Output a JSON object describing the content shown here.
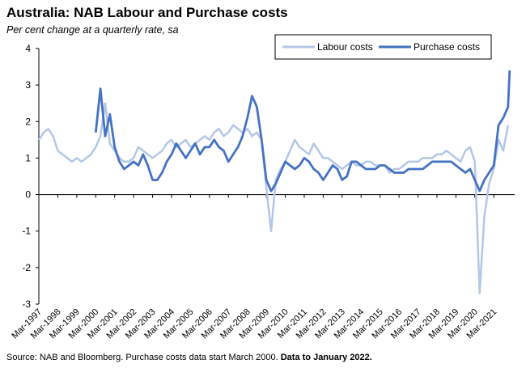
{
  "title": "Australia: NAB Labour and Purchase costs",
  "subtitle": "Per cent change at a quarterly rate, sa",
  "source_prefix": "Source: NAB and Bloomberg.  Purchase costs data start March 2000.  ",
  "source_bold": "Data to January 2022.",
  "colors": {
    "labour": "#b4c7e7",
    "purchase": "#4472c4",
    "axis": "#000000"
  },
  "chart_data": {
    "type": "line",
    "title": "Australia: NAB Labour and Purchase costs",
    "subtitle": "Per cent change at a quarterly rate, sa",
    "xlabel": "",
    "ylabel": "",
    "ylim": [
      -3,
      4
    ],
    "yticks": [
      "4",
      "3",
      "2",
      "1",
      "0",
      "-1",
      "-2",
      "-3"
    ],
    "xticks": [
      "Mar-1997",
      "Mar-1998",
      "Mar-1999",
      "Mar-2000",
      "Mar-2001",
      "Mar-2002",
      "Mar-2003",
      "Mar-2004",
      "Mar-2005",
      "Mar-2006",
      "Mar-2007",
      "Mar-2008",
      "Mar-2009",
      "Mar-2010",
      "Mar-2011",
      "Mar-2012",
      "Mar-2013",
      "Mar-2014",
      "Mar-2015",
      "Mar-2016",
      "Mar-2017",
      "Mar-2018",
      "Mar-2019",
      "Mar-2020",
      "Mar-2021"
    ],
    "legend_position": "top-right",
    "grid": false,
    "series": [
      {
        "name": "Labour costs",
        "x": [
          "1997-03",
          "1997-06",
          "1997-09",
          "1997-12",
          "1998-03",
          "1998-06",
          "1998-09",
          "1998-12",
          "1999-03",
          "1999-06",
          "1999-09",
          "1999-12",
          "2000-03",
          "2000-06",
          "2000-09",
          "2000-12",
          "2001-03",
          "2001-06",
          "2001-09",
          "2001-12",
          "2002-03",
          "2002-06",
          "2002-09",
          "2002-12",
          "2003-03",
          "2003-06",
          "2003-09",
          "2003-12",
          "2004-03",
          "2004-06",
          "2004-09",
          "2004-12",
          "2005-03",
          "2005-06",
          "2005-09",
          "2005-12",
          "2006-03",
          "2006-06",
          "2006-09",
          "2006-12",
          "2007-03",
          "2007-06",
          "2007-09",
          "2007-12",
          "2008-03",
          "2008-06",
          "2008-09",
          "2008-12",
          "2009-03",
          "2009-06",
          "2009-09",
          "2009-12",
          "2010-03",
          "2010-06",
          "2010-09",
          "2010-12",
          "2011-03",
          "2011-06",
          "2011-09",
          "2011-12",
          "2012-03",
          "2012-06",
          "2012-09",
          "2012-12",
          "2013-03",
          "2013-06",
          "2013-09",
          "2013-12",
          "2014-03",
          "2014-06",
          "2014-09",
          "2014-12",
          "2015-03",
          "2015-06",
          "2015-09",
          "2015-12",
          "2016-03",
          "2016-06",
          "2016-09",
          "2016-12",
          "2017-03",
          "2017-06",
          "2017-09",
          "2017-12",
          "2018-03",
          "2018-06",
          "2018-09",
          "2018-12",
          "2019-03",
          "2019-06",
          "2019-09",
          "2019-12",
          "2020-03",
          "2020-06",
          "2020-09",
          "2020-12",
          "2021-03",
          "2021-06",
          "2021-09",
          "2021-12"
        ],
        "values": [
          1.5,
          1.7,
          1.8,
          1.6,
          1.2,
          1.1,
          1.0,
          0.9,
          1.0,
          0.9,
          1.0,
          1.1,
          1.3,
          1.6,
          2.5,
          1.4,
          1.2,
          1.0,
          0.9,
          0.9,
          1.0,
          1.3,
          1.2,
          1.1,
          1.0,
          1.1,
          1.2,
          1.4,
          1.5,
          1.3,
          1.4,
          1.5,
          1.3,
          1.4,
          1.5,
          1.6,
          1.5,
          1.7,
          1.8,
          1.6,
          1.7,
          1.9,
          1.8,
          1.7,
          1.8,
          1.6,
          1.7,
          1.5,
          0.2,
          -1.0,
          0.4,
          0.7,
          0.9,
          1.2,
          1.5,
          1.3,
          1.2,
          1.1,
          1.4,
          1.2,
          1.0,
          1.0,
          0.9,
          0.8,
          0.7,
          0.8,
          0.9,
          0.8,
          0.8,
          0.9,
          0.9,
          0.8,
          0.8,
          0.8,
          0.6,
          0.7,
          0.7,
          0.8,
          0.9,
          0.9,
          0.9,
          1.0,
          1.0,
          1.0,
          1.1,
          1.1,
          1.2,
          1.1,
          1.0,
          0.9,
          1.2,
          1.3,
          0.9,
          -2.7,
          -0.6,
          0.3,
          0.7,
          1.5,
          1.2,
          1.9
        ]
      },
      {
        "name": "Purchase costs",
        "x": [
          "2000-03",
          "2000-06",
          "2000-09",
          "2000-12",
          "2001-03",
          "2001-06",
          "2001-09",
          "2001-12",
          "2002-03",
          "2002-06",
          "2002-09",
          "2002-12",
          "2003-03",
          "2003-06",
          "2003-09",
          "2003-12",
          "2004-03",
          "2004-06",
          "2004-09",
          "2004-12",
          "2005-03",
          "2005-06",
          "2005-09",
          "2005-12",
          "2006-03",
          "2006-06",
          "2006-09",
          "2006-12",
          "2007-03",
          "2007-06",
          "2007-09",
          "2007-12",
          "2008-03",
          "2008-06",
          "2008-09",
          "2008-12",
          "2009-03",
          "2009-06",
          "2009-09",
          "2009-12",
          "2010-03",
          "2010-06",
          "2010-09",
          "2010-12",
          "2011-03",
          "2011-06",
          "2011-09",
          "2011-12",
          "2012-03",
          "2012-06",
          "2012-09",
          "2012-12",
          "2013-03",
          "2013-06",
          "2013-09",
          "2013-12",
          "2014-03",
          "2014-06",
          "2014-09",
          "2014-12",
          "2015-03",
          "2015-06",
          "2015-09",
          "2015-12",
          "2016-03",
          "2016-06",
          "2016-09",
          "2016-12",
          "2017-03",
          "2017-06",
          "2017-09",
          "2017-12",
          "2018-03",
          "2018-06",
          "2018-09",
          "2018-12",
          "2019-03",
          "2019-06",
          "2019-09",
          "2019-12",
          "2020-03",
          "2020-06",
          "2020-09",
          "2020-12",
          "2021-03",
          "2021-06",
          "2021-09",
          "2021-12",
          "2022-01"
        ],
        "values": [
          1.7,
          2.9,
          1.6,
          2.2,
          1.3,
          0.9,
          0.7,
          0.8,
          0.9,
          0.8,
          1.1,
          0.8,
          0.4,
          0.4,
          0.6,
          0.9,
          1.1,
          1.4,
          1.2,
          1.0,
          1.2,
          1.4,
          1.1,
          1.3,
          1.3,
          1.5,
          1.3,
          1.2,
          0.9,
          1.1,
          1.3,
          1.6,
          2.1,
          2.7,
          2.4,
          1.5,
          0.4,
          0.1,
          0.3,
          0.6,
          0.9,
          0.8,
          0.7,
          0.8,
          1.0,
          0.9,
          0.7,
          0.6,
          0.4,
          0.6,
          0.8,
          0.7,
          0.4,
          0.5,
          0.9,
          0.9,
          0.8,
          0.7,
          0.7,
          0.7,
          0.8,
          0.8,
          0.7,
          0.6,
          0.6,
          0.6,
          0.7,
          0.7,
          0.7,
          0.7,
          0.8,
          0.9,
          0.9,
          0.9,
          0.9,
          0.9,
          0.8,
          0.7,
          0.6,
          0.7,
          0.4,
          0.1,
          0.4,
          0.6,
          0.8,
          1.9,
          2.1,
          2.4,
          3.4
        ]
      }
    ]
  }
}
